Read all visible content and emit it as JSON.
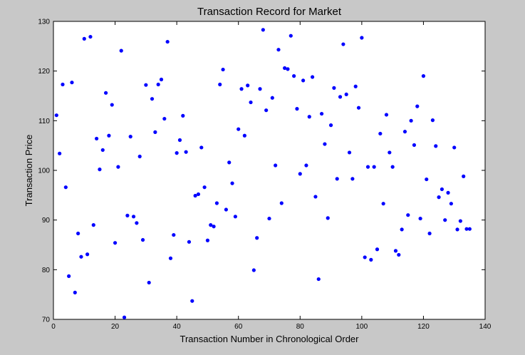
{
  "chart_data": {
    "type": "scatter",
    "title": "Transaction Record for Market",
    "xlabel": "Transaction Number in Chronological Order",
    "ylabel": "Transaction Price",
    "xlim": [
      0,
      140
    ],
    "ylim": [
      70,
      130
    ],
    "xticks": [
      0,
      20,
      40,
      60,
      80,
      100,
      120,
      140
    ],
    "yticks": [
      70,
      80,
      90,
      100,
      110,
      120,
      130
    ],
    "grid": false,
    "legend": "none",
    "marker_color": "#0000ff",
    "x": [
      1,
      2,
      3,
      4,
      5,
      6,
      7,
      8,
      9,
      10,
      11,
      12,
      13,
      14,
      15,
      16,
      17,
      18,
      19,
      20,
      21,
      22,
      23,
      24,
      25,
      26,
      27,
      28,
      29,
      30,
      31,
      32,
      33,
      34,
      35,
      36,
      37,
      38,
      39,
      40,
      41,
      42,
      43,
      44,
      45,
      46,
      47,
      48,
      49,
      50,
      51,
      52,
      53,
      54,
      55,
      56,
      57,
      58,
      59,
      60,
      61,
      62,
      63,
      64,
      65,
      66,
      67,
      68,
      69,
      70,
      71,
      72,
      73,
      74,
      75,
      76,
      77,
      78,
      79,
      80,
      81,
      82,
      83,
      84,
      85,
      86,
      87,
      88,
      89,
      90,
      91,
      92,
      93,
      94,
      95,
      96,
      97,
      98,
      99,
      100,
      101,
      102,
      103,
      104,
      105,
      106,
      107,
      108,
      109,
      110,
      111,
      112,
      113,
      114,
      115,
      116,
      117,
      118,
      119,
      120,
      121,
      122,
      123,
      124,
      125,
      126,
      127,
      128,
      129,
      130,
      131,
      132,
      133,
      134,
      135
    ],
    "y": [
      111.1,
      103.4,
      117.3,
      96.6,
      78.7,
      117.7,
      75.4,
      87.3,
      82.6,
      126.5,
      83.1,
      126.9,
      89.0,
      106.4,
      100.2,
      104.1,
      115.6,
      107.0,
      113.2,
      85.4,
      100.7,
      124.1,
      70.4,
      90.9,
      106.8,
      90.7,
      89.4,
      102.8,
      86.0,
      117.2,
      77.4,
      114.4,
      107.7,
      117.3,
      118.3,
      110.4,
      125.9,
      82.3,
      87.0,
      103.5,
      106.1,
      111.0,
      103.7,
      85.6,
      73.7,
      94.9,
      95.2,
      104.6,
      96.6,
      85.9,
      89.0,
      88.7,
      93.4,
      117.3,
      120.3,
      92.1,
      101.6,
      97.4,
      90.7,
      108.3,
      116.4,
      107.0,
      117.1,
      113.7,
      79.9,
      86.4,
      116.4,
      128.3,
      112.1,
      90.3,
      114.6,
      101.0,
      124.3,
      93.4,
      120.6,
      120.4,
      127.1,
      119.0,
      112.4,
      99.3,
      118.1,
      101.0,
      110.8,
      118.8,
      94.7,
      78.1,
      111.4,
      105.3,
      90.4,
      109.1,
      116.6,
      98.3,
      114.8,
      125.4,
      115.3,
      103.6,
      98.3,
      116.9,
      112.6,
      126.7,
      82.5,
      100.7,
      82.0,
      100.7,
      84.1,
      107.4,
      93.3,
      111.2,
      103.6,
      100.7,
      83.8,
      83.0,
      88.1,
      107.8,
      91.0,
      110.0,
      105.1,
      112.9,
      90.3,
      119.0,
      98.2,
      87.3,
      110.1,
      104.9,
      94.6,
      96.2,
      90.0,
      95.5,
      93.3,
      104.6,
      88.1,
      89.8,
      98.8,
      88.2,
      88.2
    ]
  }
}
